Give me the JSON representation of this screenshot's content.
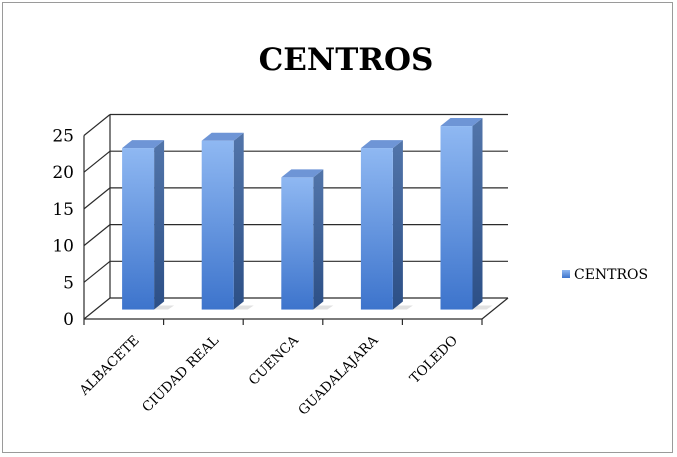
{
  "chart_data": {
    "type": "bar",
    "style": "3d-column",
    "title": "CENTROS",
    "categories": [
      "ALBACETE",
      "CIUDAD REAL",
      "CUENCA",
      "GUADALAJARA",
      "TOLEDO"
    ],
    "series": [
      {
        "name": "CENTROS",
        "values": [
          22,
          23,
          18,
          22,
          25
        ],
        "color": "#4a7fd4"
      }
    ],
    "yticks": [
      0,
      5,
      10,
      15,
      20,
      25
    ],
    "ylim": [
      0,
      25
    ],
    "xlabel": "",
    "ylabel": "",
    "grid": true,
    "legend": "right"
  }
}
